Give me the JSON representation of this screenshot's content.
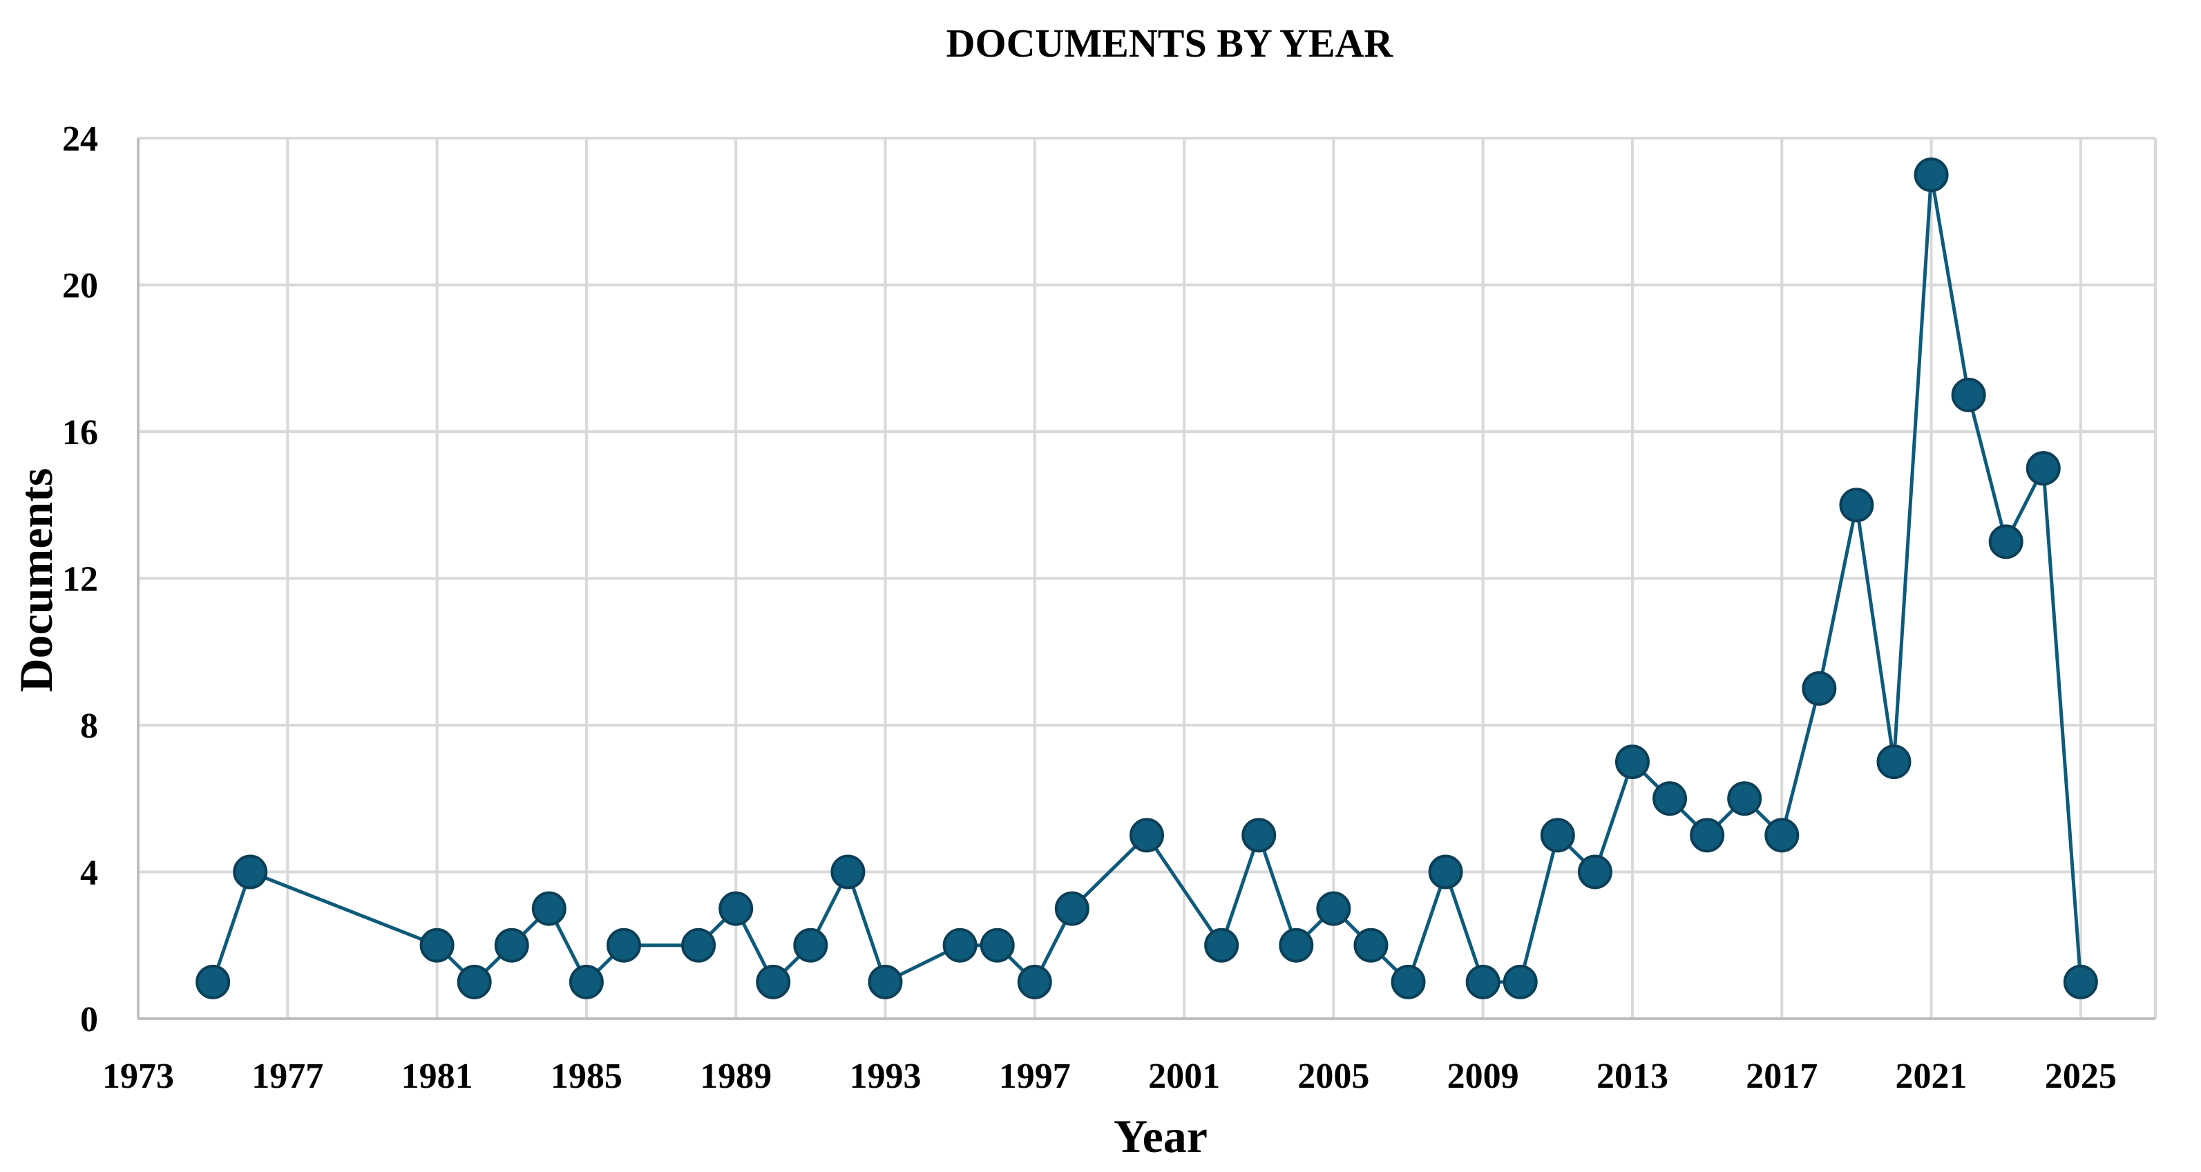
{
  "chart_data": {
    "type": "line",
    "title": "DOCUMENTS BY YEAR",
    "xlabel": "Year",
    "ylabel": "Documents",
    "xlim": [
      1973,
      2027
    ],
    "ylim": [
      0,
      24
    ],
    "x_ticks": [
      "1973",
      "1977",
      "1981",
      "1985",
      "1989",
      "1993",
      "1997",
      "2001",
      "2005",
      "2009",
      "2013",
      "2017",
      "2021",
      "2025"
    ],
    "y_ticks": [
      "0",
      "4",
      "8",
      "12",
      "16",
      "20",
      "24"
    ],
    "grid": true,
    "legend": "none",
    "colors": {
      "series": "#0e5a7a",
      "marker_fill": "#0e5a7a",
      "marker_edge": "#0a3f57",
      "grid": "#d9d9d9"
    },
    "series": [
      {
        "x": [
          1975,
          1976,
          1981,
          1982,
          1983,
          1984,
          1985,
          1986,
          1988,
          1989,
          1990,
          1991,
          1992,
          1993,
          1995,
          1996,
          1997,
          1998,
          2000,
          2002,
          2003,
          2004,
          2005,
          2006,
          2007,
          2008,
          2009,
          2010,
          2011,
          2012,
          2013,
          2014,
          2015,
          2016,
          2017,
          2018,
          2019,
          2020,
          2021,
          2022,
          2023,
          2024,
          2025
        ],
        "values": [
          1,
          4,
          2,
          1,
          2,
          3,
          1,
          2,
          2,
          3,
          1,
          2,
          4,
          1,
          2,
          2,
          1,
          3,
          5,
          2,
          5,
          2,
          3,
          2,
          1,
          4,
          1,
          1,
          5,
          4,
          7,
          6,
          5,
          6,
          5,
          9,
          14,
          7,
          23,
          17,
          13,
          15,
          1
        ]
      }
    ]
  }
}
